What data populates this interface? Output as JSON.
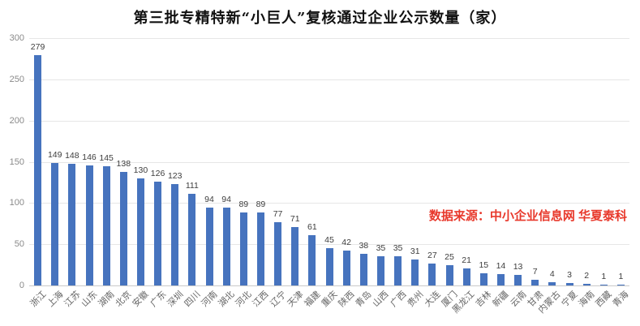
{
  "title": "第三批专精特新“小巨人”复核通过企业公示数量（家）",
  "source_note": "数据来源：中小企业信息网 华夏泰科",
  "colors": {
    "bar": "#4673be",
    "source_text": "#e8392c",
    "grid": "#e6e6e6",
    "zero_axis": "#c9c9c9",
    "y_tick_text": "#8a8a8a",
    "x_label_text": "#666666",
    "value_label_text": "#3d3d3d",
    "title_text": "#111111",
    "background": "#ffffff"
  },
  "chart_data": {
    "type": "bar",
    "title": "第三批专精特新“小巨人”复核通过企业公示数量（家）",
    "categories": [
      "浙江",
      "上海",
      "江苏",
      "山东",
      "湖南",
      "北京",
      "安徽",
      "广东",
      "深圳",
      "四川",
      "河南",
      "湖北",
      "河北",
      "江西",
      "辽宁",
      "天津",
      "福建",
      "重庆",
      "陕西",
      "青岛",
      "山西",
      "广西",
      "贵州",
      "大连",
      "厦门",
      "黑龙江",
      "吉林",
      "新疆",
      "云南",
      "甘肃",
      "内蒙古",
      "宁夏",
      "海南",
      "西藏",
      "青海"
    ],
    "values": [
      279,
      149,
      148,
      146,
      145,
      138,
      130,
      126,
      123,
      111,
      94,
      94,
      89,
      89,
      77,
      71,
      61,
      45,
      42,
      38,
      35,
      35,
      31,
      27,
      25,
      21,
      15,
      14,
      13,
      7,
      4,
      3,
      2,
      1,
      1
    ],
    "xlabel": "",
    "ylabel": "",
    "ylim": [
      0,
      300
    ],
    "ytick_step": 50,
    "yticks": [
      0,
      50,
      100,
      150,
      200,
      250,
      300
    ],
    "grid": true,
    "legend": "none",
    "value_labels": true,
    "annotation": "数据来源：中小企业信息网 华夏泰科"
  }
}
